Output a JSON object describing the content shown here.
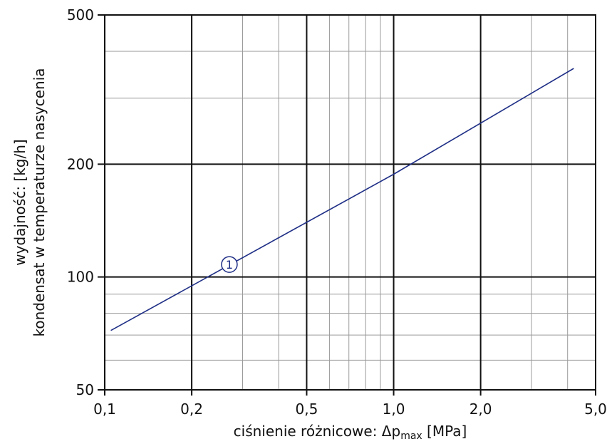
{
  "chart_data": {
    "type": "line",
    "title": "",
    "xlabel": {
      "prefix": "ciśnienie różnicowe: Δp",
      "subscript": "max",
      "suffix": " [MPa]"
    },
    "ylabel_line1": "wydajność: [kg/h]",
    "ylabel_line2": "kondensat w temperaturze nasycenia",
    "x_scale": "log",
    "y_scale": "log",
    "xlim": [
      0.1,
      5.0
    ],
    "ylim": [
      50,
      500
    ],
    "x_ticks": [
      {
        "value": 0.1,
        "label": "0,1"
      },
      {
        "value": 0.2,
        "label": "0,2"
      },
      {
        "value": 0.5,
        "label": "0,5"
      },
      {
        "value": 1.0,
        "label": "1,0"
      },
      {
        "value": 2.0,
        "label": "2,0"
      },
      {
        "value": 5.0,
        "label": "5,0"
      }
    ],
    "y_ticks": [
      {
        "value": 50,
        "label": "50"
      },
      {
        "value": 100,
        "label": "100"
      },
      {
        "value": 200,
        "label": "200"
      },
      {
        "value": 500,
        "label": "500"
      }
    ],
    "x_minor_grid": [
      0.3,
      0.4,
      0.6,
      0.7,
      0.8,
      0.9,
      3.0,
      4.0
    ],
    "y_minor_grid": [
      60,
      70,
      80,
      90,
      300,
      400
    ],
    "grid": true,
    "series": [
      {
        "label": "1",
        "color": "#1f2f86",
        "x": [
          0.105,
          1.0,
          4.2
        ],
        "y": [
          72,
          188,
          360
        ],
        "label_at": {
          "x": 0.27,
          "y": 108
        }
      }
    ]
  },
  "colors": {
    "major_grid": "#111111",
    "minor_grid": "#9a9a9a",
    "series": "#1f2f86"
  }
}
